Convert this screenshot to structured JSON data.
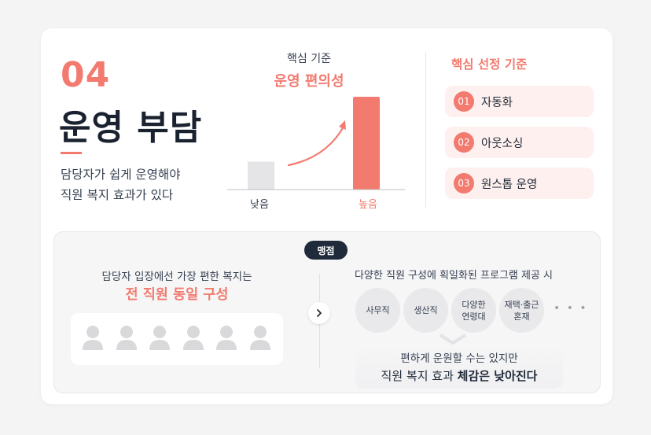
{
  "section": {
    "number": "04",
    "title": "운영 부담",
    "description_line1": "담당자가 쉽게 운영해야",
    "description_line2": "직원 복지 효과가 있다"
  },
  "chart": {
    "subtitle": "핵심 기준",
    "heading": "운영 편의성",
    "accent_color": "#f27a6f"
  },
  "chart_data": {
    "type": "bar",
    "title": "운영 편의성",
    "categories": [
      "낮음",
      "높음"
    ],
    "values": [
      0.3,
      1.0
    ],
    "colors": [
      "#e5e5e7",
      "#f27a6f"
    ],
    "grid": false,
    "annotations": [
      "upward trend arrow from 낮음 to 높음"
    ]
  },
  "criteria": {
    "title": "핵심 선정 기준",
    "items": [
      {
        "number": "01",
        "label": "자동화"
      },
      {
        "number": "02",
        "label": "아웃소싱"
      },
      {
        "number": "03",
        "label": "원스톱 운영"
      }
    ]
  },
  "bottom": {
    "pill": "맹점",
    "left": {
      "subtitle": "담당자 입장에선 가장 편한 복지는",
      "heading": "전 직원 동일 구성",
      "people_count": 6,
      "person_icon": "person-icon"
    },
    "right": {
      "heading": "다양한 직원 구성에 획일화된 프로그램 제공 시",
      "groups": [
        {
          "line1": "사무직",
          "line2": ""
        },
        {
          "line1": "생산직",
          "line2": ""
        },
        {
          "line1": "다양한",
          "line2": "연령대"
        },
        {
          "line1": "재택·출근",
          "line2": "혼재"
        }
      ],
      "more": "• • •",
      "conclusion_line1": "편하게 운원할 수는 있지만",
      "conclusion_line2_prefix": "직원 복지 효과 ",
      "conclusion_line2_bold": "체감은 낮아진다"
    }
  }
}
